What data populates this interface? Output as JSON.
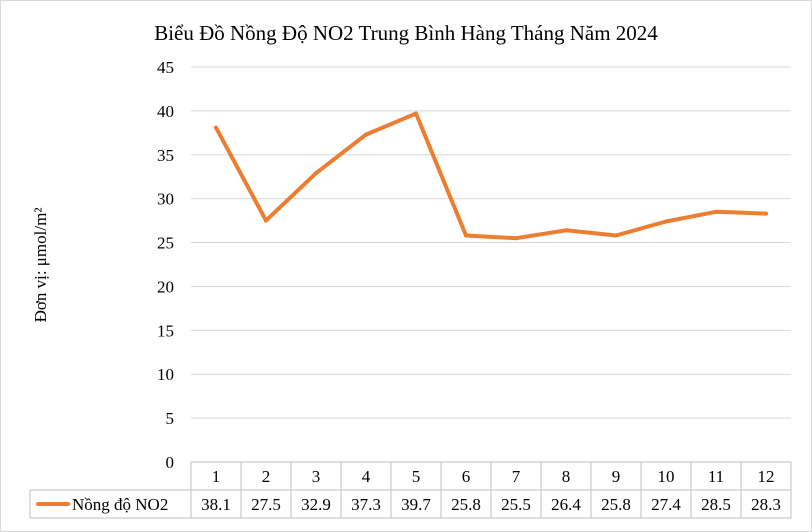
{
  "chart_data": {
    "type": "line",
    "title": "Biểu Đồ Nồng Độ NO2 Trung Bình Hàng Tháng Năm 2024",
    "ylabel": "Đơn vị: μmol/m²",
    "xlabel": "",
    "categories": [
      "1",
      "2",
      "3",
      "4",
      "5",
      "6",
      "7",
      "8",
      "9",
      "10",
      "11",
      "12"
    ],
    "y_ticks": [
      "0",
      "5",
      "10",
      "15",
      "20",
      "25",
      "30",
      "35",
      "40",
      "45"
    ],
    "ylim": [
      0,
      45
    ],
    "grid": true,
    "legend": "data-table-left",
    "series": [
      {
        "name": "Nồng độ NO2",
        "color": "#ED7D31",
        "values": [
          38.1,
          27.5,
          32.9,
          37.3,
          39.7,
          25.8,
          25.5,
          26.4,
          25.8,
          27.4,
          28.5,
          28.3
        ],
        "value_labels": [
          "38.1",
          "27.5",
          "32.9",
          "37.3",
          "39.7",
          "25.8",
          "25.5",
          "26.4",
          "25.8",
          "27.4",
          "28.5",
          "28.3"
        ]
      }
    ]
  }
}
